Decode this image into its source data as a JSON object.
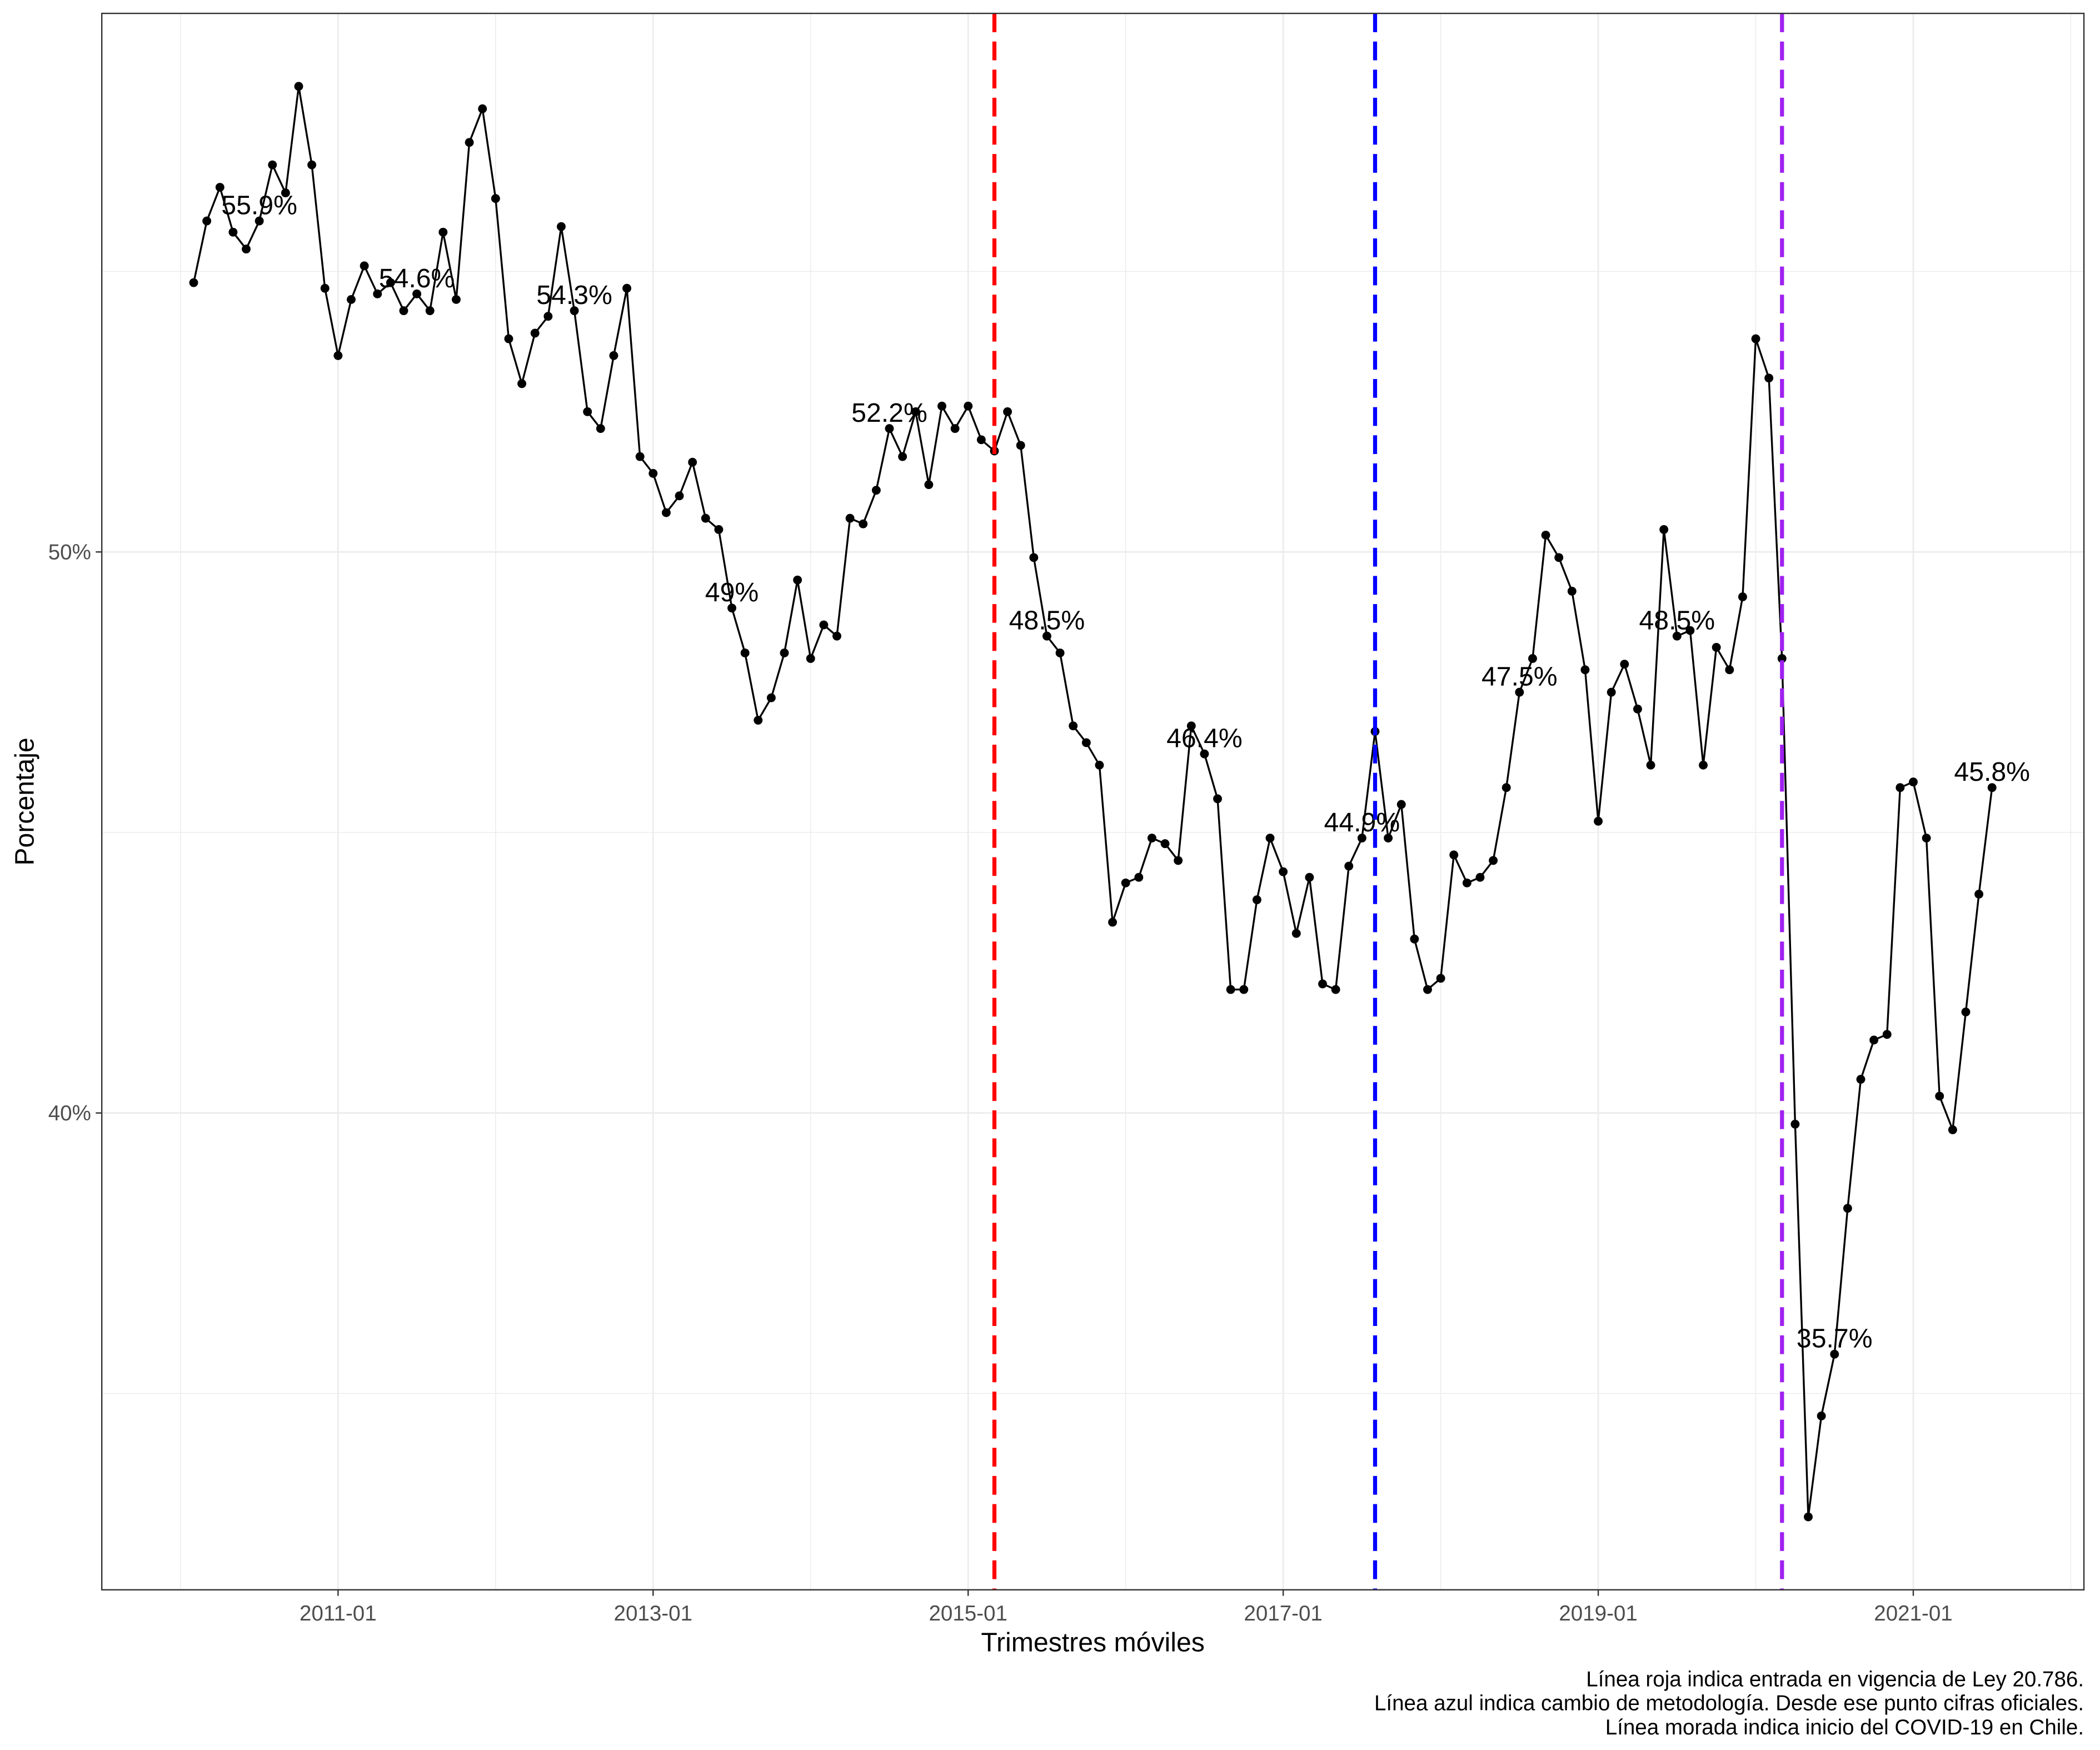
{
  "chart_data": {
    "type": "line",
    "xlabel": "Trimestres móviles",
    "ylabel": "Porcentaje",
    "caption": [
      "Línea roja indica entrada en vigencia de Ley 20.786.",
      "Línea azul indica cambio de metodología. Desde ese punto cifras oficiales.",
      "Línea morada indica inicio del COVID-19 en Chile."
    ],
    "xlim": [
      "2009-07",
      "2022-02"
    ],
    "ylim": [
      31.5,
      59.6
    ],
    "grid": true,
    "x_ticks": [
      "2011-01",
      "2013-01",
      "2015-01",
      "2017-01",
      "2019-01",
      "2021-01"
    ],
    "y_ticks": [
      {
        "value": 50,
        "label": "50%"
      },
      {
        "value": 40,
        "label": "40%"
      }
    ],
    "x": [
      "2010-02",
      "2010-03",
      "2010-04",
      "2010-05",
      "2010-06",
      "2010-07",
      "2010-08",
      "2010-09",
      "2010-10",
      "2010-11",
      "2010-12",
      "2011-01",
      "2011-02",
      "2011-03",
      "2011-04",
      "2011-05",
      "2011-06",
      "2011-07",
      "2011-08",
      "2011-09",
      "2011-10",
      "2011-11",
      "2011-12",
      "2012-01",
      "2012-02",
      "2012-03",
      "2012-04",
      "2012-05",
      "2012-06",
      "2012-07",
      "2012-08",
      "2012-09",
      "2012-10",
      "2012-11",
      "2012-12",
      "2013-01",
      "2013-02",
      "2013-03",
      "2013-04",
      "2013-05",
      "2013-06",
      "2013-07",
      "2013-08",
      "2013-09",
      "2013-10",
      "2013-11",
      "2013-12",
      "2014-01",
      "2014-02",
      "2014-03",
      "2014-04",
      "2014-05",
      "2014-06",
      "2014-07",
      "2014-08",
      "2014-09",
      "2014-10",
      "2014-11",
      "2014-12",
      "2015-01",
      "2015-02",
      "2015-03",
      "2015-04",
      "2015-05",
      "2015-06",
      "2015-07",
      "2015-08",
      "2015-09",
      "2015-10",
      "2015-11",
      "2015-12",
      "2016-01",
      "2016-02",
      "2016-03",
      "2016-04",
      "2016-05",
      "2016-06",
      "2016-07",
      "2016-08",
      "2016-09",
      "2016-10",
      "2016-11",
      "2016-12",
      "2017-01",
      "2017-02",
      "2017-03",
      "2017-04",
      "2017-05",
      "2017-06",
      "2017-07",
      "2017-08",
      "2017-09",
      "2017-10",
      "2017-11",
      "2017-12",
      "2018-01",
      "2018-02",
      "2018-03",
      "2018-04",
      "2018-05",
      "2018-06",
      "2018-07",
      "2018-08",
      "2018-09",
      "2018-10",
      "2018-11",
      "2018-12",
      "2019-01",
      "2019-02",
      "2019-03",
      "2019-04",
      "2019-05",
      "2019-06",
      "2019-07",
      "2019-08",
      "2019-09",
      "2019-10",
      "2019-11",
      "2019-12",
      "2020-01",
      "2020-02",
      "2020-03",
      "2020-04",
      "2020-05",
      "2020-06",
      "2020-07",
      "2020-08",
      "2020-09",
      "2020-10",
      "2020-11",
      "2020-12",
      "2021-01",
      "2021-02",
      "2021-03",
      "2021-04",
      "2021-05",
      "2021-06",
      "2021-07"
    ],
    "series": [
      {
        "color": "#000000",
        "values": [
          54.8,
          55.9,
          56.5,
          55.7,
          55.4,
          55.9,
          56.9,
          56.4,
          58.3,
          56.9,
          54.7,
          53.5,
          54.5,
          55.1,
          54.6,
          54.8,
          54.3,
          54.6,
          54.3,
          55.7,
          54.5,
          57.3,
          57.9,
          56.3,
          53.8,
          53.0,
          53.9,
          54.2,
          55.8,
          54.3,
          52.5,
          52.2,
          53.5,
          54.7,
          51.7,
          51.4,
          50.7,
          51.0,
          51.6,
          50.6,
          50.4,
          49.0,
          48.2,
          47.0,
          47.4,
          48.2,
          49.5,
          48.1,
          48.7,
          48.5,
          50.6,
          50.5,
          51.1,
          52.2,
          51.7,
          52.5,
          51.2,
          52.6,
          52.2,
          52.6,
          52.0,
          51.8,
          52.5,
          51.9,
          49.9,
          48.5,
          48.2,
          46.9,
          46.6,
          46.2,
          43.4,
          44.1,
          44.2,
          44.9,
          44.8,
          44.5,
          46.9,
          46.4,
          45.6,
          42.2,
          42.2,
          43.8,
          44.9,
          44.3,
          43.2,
          44.2,
          42.3,
          42.2,
          44.4,
          44.9,
          46.8,
          44.9,
          45.5,
          43.1,
          42.2,
          42.4,
          44.6,
          44.1,
          44.2,
          44.5,
          45.8,
          47.5,
          48.1,
          50.3,
          49.9,
          49.3,
          47.9,
          45.2,
          47.5,
          48.0,
          47.2,
          46.2,
          50.4,
          48.5,
          48.6,
          46.2,
          48.3,
          47.9,
          49.2,
          53.8,
          53.1,
          48.1,
          39.8,
          32.8,
          34.6,
          35.7,
          38.3,
          40.6,
          41.3,
          41.4,
          45.8,
          45.9,
          44.9,
          40.3,
          39.7,
          41.8,
          43.9,
          45.8
        ]
      }
    ],
    "annotations": [
      {
        "x": "2010-07",
        "label": "55.9%"
      },
      {
        "x": "2011-07",
        "label": "54.6%"
      },
      {
        "x": "2012-07",
        "label": "54.3%"
      },
      {
        "x": "2013-07",
        "label": "49%"
      },
      {
        "x": "2014-07",
        "label": "52.2%"
      },
      {
        "x": "2015-07",
        "label": "48.5%"
      },
      {
        "x": "2016-07",
        "label": "46.4%"
      },
      {
        "x": "2017-07",
        "label": "44.9%"
      },
      {
        "x": "2018-07",
        "label": "47.5%"
      },
      {
        "x": "2019-07",
        "label": "48.5%"
      },
      {
        "x": "2020-07",
        "label": "35.7%"
      },
      {
        "x": "2021-07",
        "label": "45.8%"
      }
    ],
    "vlines": [
      {
        "x": "2015-03",
        "color": "#FF0000"
      },
      {
        "x": "2017-08",
        "color": "#0000FF"
      },
      {
        "x": "2020-03",
        "color": "#A020F0"
      }
    ]
  }
}
